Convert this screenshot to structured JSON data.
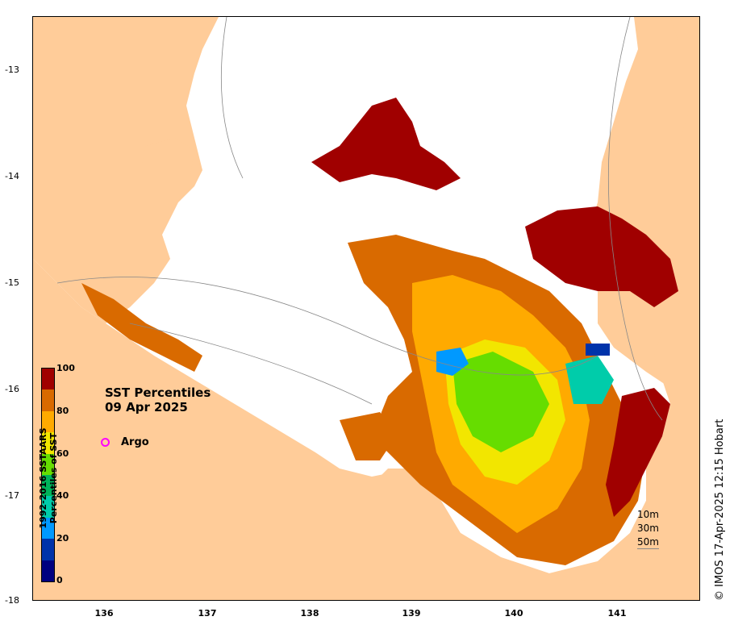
{
  "map": {
    "title_line1": "SST Percentiles",
    "title_line2": "09 Apr 2025",
    "argo_label": "Argo",
    "colors": {
      "land": "#ffcc99",
      "no_data": "#ffffff",
      "argo": "#ff00ff"
    }
  },
  "axes": {
    "lat_ticks": [
      "-13",
      "-14",
      "-15",
      "-16",
      "-17",
      "-18"
    ],
    "lon_ticks": [
      "136",
      "137",
      "138",
      "139",
      "140",
      "141"
    ]
  },
  "colorbar": {
    "title_line1": "1992-2016 SSTAARS",
    "title_line2": "Percentiles of SST",
    "labels": [
      "100",
      "80",
      "60",
      "40",
      "20",
      "0"
    ],
    "colors": [
      "#000080",
      "#0033aa",
      "#0099ff",
      "#00ccaa",
      "#00b35a",
      "#66dd00",
      "#f2e600",
      "#ffaa00",
      "#d96a00",
      "#a00000"
    ]
  },
  "depth_legend": {
    "items": [
      "10m",
      "30m",
      "50m"
    ]
  },
  "footer": {
    "copyright": "© IMOS 17-Apr-2025 12:15 Hobart"
  }
}
